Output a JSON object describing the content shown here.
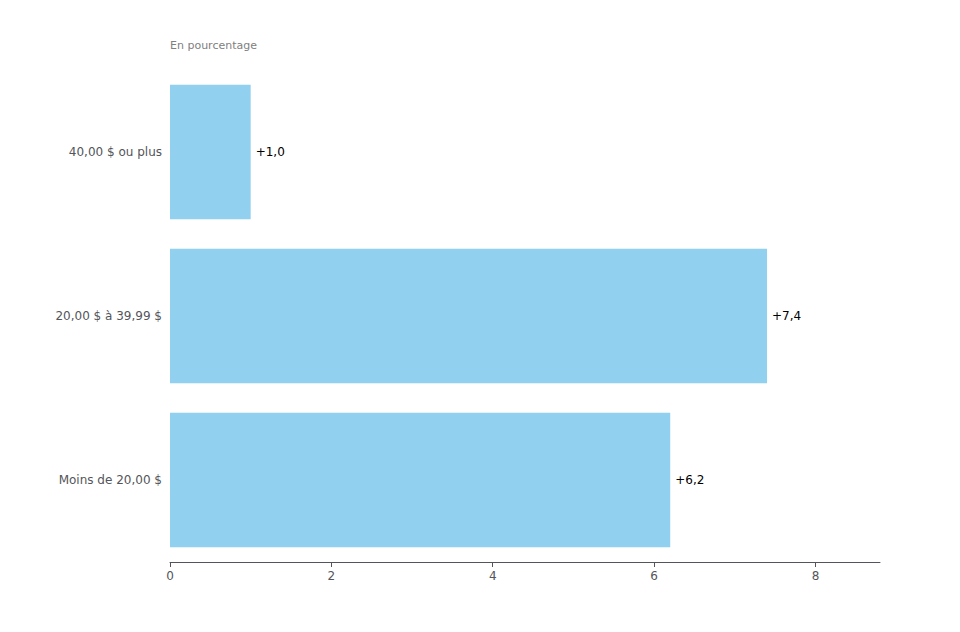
{
  "chart_data": {
    "type": "bar",
    "orientation": "horizontal",
    "categories": [
      "40,00 $ ou plus",
      "20,00 $ à 39,99 $",
      "Moins de 20,00 $"
    ],
    "values": [
      1.0,
      7.4,
      6.2
    ],
    "value_labels": [
      "+1,0",
      "+7,4",
      "+6,2"
    ],
    "data_labels": true,
    "color": "#92D0F0",
    "xlim": [
      0,
      8.8
    ],
    "xticks": [
      0,
      2,
      4,
      6,
      8
    ],
    "grid": false,
    "annotation": "En pourcentage"
  }
}
